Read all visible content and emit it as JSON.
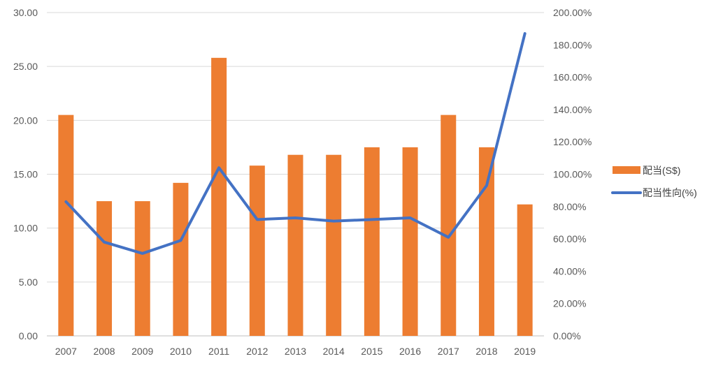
{
  "chart_data": {
    "type": "bar",
    "categories": [
      "2007",
      "2008",
      "2009",
      "2010",
      "2011",
      "2012",
      "2013",
      "2014",
      "2015",
      "2016",
      "2017",
      "2018",
      "2019"
    ],
    "series": [
      {
        "name": "配当(S$)",
        "type": "bar",
        "axis": "left",
        "color": "#ED7D31",
        "values": [
          20.5,
          12.5,
          12.5,
          14.2,
          25.8,
          15.8,
          16.8,
          16.8,
          17.5,
          17.5,
          20.5,
          17.5,
          12.2
        ]
      },
      {
        "name": "配当性向(%)",
        "type": "line",
        "axis": "right",
        "color": "#4472C4",
        "values": [
          83,
          58,
          51,
          59,
          104,
          72,
          73,
          71,
          72,
          73,
          61,
          93,
          187
        ]
      }
    ],
    "left_axis": {
      "ylim": [
        0,
        30
      ],
      "ticks": [
        0,
        5,
        10,
        15,
        20,
        25,
        30
      ],
      "tick_labels": [
        "0.00",
        "5.00",
        "10.00",
        "15.00",
        "20.00",
        "25.00",
        "30.00"
      ]
    },
    "right_axis": {
      "ylim": [
        0,
        200
      ],
      "ticks": [
        0,
        20,
        40,
        60,
        80,
        100,
        120,
        140,
        160,
        180,
        200
      ],
      "tick_labels": [
        "0.00%",
        "20.00%",
        "40.00%",
        "60.00%",
        "80.00%",
        "100.00%",
        "120.00%",
        "140.00%",
        "160.00%",
        "180.00%",
        "200.00%"
      ]
    },
    "grid": true,
    "legend_position": "right"
  }
}
